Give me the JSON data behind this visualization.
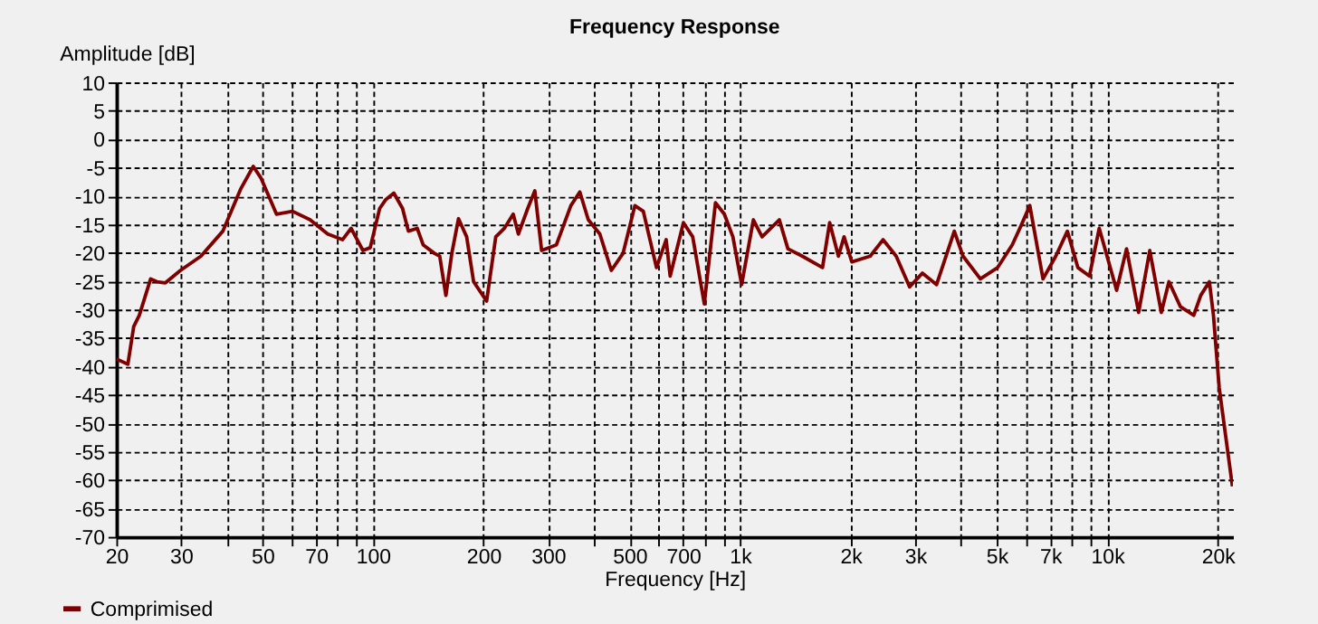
{
  "chart_data": {
    "type": "line",
    "title": "Frequency Response",
    "xlabel": "Frequency [Hz]",
    "ylabel": "Amplitude [dB]",
    "log": "x",
    "grid": true,
    "legend": "bottom left",
    "line_style": "solid",
    "xlim": [
      20,
      22000
    ],
    "ylim": [
      -70,
      10
    ],
    "xticks": [
      20,
      30,
      {
        "value": 40,
        "label": null
      },
      50,
      {
        "value": 60,
        "label": null
      },
      70,
      {
        "value": 80,
        "label": null
      },
      {
        "value": 90,
        "label": null
      },
      100,
      200,
      300,
      {
        "value": 400,
        "label": null
      },
      500,
      {
        "value": 600,
        "label": null
      },
      700,
      {
        "value": 800,
        "label": null
      },
      {
        "value": 900,
        "label": null
      },
      {
        "value": 1000,
        "label": "1k"
      },
      {
        "value": 2000,
        "label": "2k"
      },
      {
        "value": 3000,
        "label": "3k"
      },
      {
        "value": 4000,
        "label": null
      },
      {
        "value": 5000,
        "label": "5k"
      },
      {
        "value": 6000,
        "label": null
      },
      {
        "value": 7000,
        "label": "7k"
      },
      {
        "value": 8000,
        "label": null
      },
      {
        "value": 9000,
        "label": null
      },
      {
        "value": 10000,
        "label": "10k"
      },
      {
        "value": 20000,
        "label": "20k"
      }
    ],
    "yticks": [
      -70,
      -65,
      -60,
      -55,
      -50,
      -45,
      -40,
      -35,
      -30,
      -25,
      -20,
      -15,
      -10,
      -5,
      0,
      5,
      10
    ],
    "x": [
      20,
      21.5,
      22.3,
      23.1,
      24.8,
      25.8,
      27.2,
      29.9,
      34,
      39,
      43.6,
      47.2,
      49.5,
      54.6,
      60.4,
      67.4,
      75.3,
      82.6,
      87.2,
      93.9,
      98.3,
      104.3,
      108.2,
      114,
      120.4,
      124.9,
      132,
      137,
      147,
      152,
      158,
      164,
      171,
      180,
      188,
      204,
      216,
      228,
      241,
      249,
      264,
      276,
      288,
      316,
      346,
      366,
      386,
      415,
      446,
      480,
      517,
      545,
      592,
      629,
      645,
      701,
      743,
      799,
      857,
      906,
      956,
      1010,
      1087,
      1148,
      1279,
      1350,
      1477,
      1677,
      1754,
      1853,
      1920,
      2015,
      2262,
      2451,
      2662,
      2896,
      3137,
      3430,
      3833,
      4049,
      4513,
      5031,
      5513,
      5828,
      6155,
      6686,
      7243,
      7790,
      8318,
      8946,
      9512,
      10610,
      11290,
      12180,
      13060,
      14040,
      14730,
      15830,
      17210,
      17980,
      18980,
      19470,
      20190,
      21930
    ],
    "series": [
      {
        "name": "Comprimised",
        "color": "#800000",
        "values": [
          -38.7,
          -39.6,
          -33,
          -31,
          -24.6,
          -25.1,
          -25.3,
          -23.1,
          -20.6,
          -16.2,
          -8.8,
          -4.8,
          -6.8,
          -13.2,
          -12.7,
          -14.2,
          -16.7,
          -17.7,
          -15.7,
          -19.6,
          -19.1,
          -12.2,
          -10.7,
          -9.5,
          -12.2,
          -16.2,
          -15.7,
          -18.6,
          -20.1,
          -20.6,
          -27.5,
          -20.1,
          -14,
          -17.2,
          -25.1,
          -28.5,
          -17.2,
          -15.7,
          -13.2,
          -16.7,
          -12.2,
          -9.1,
          -19.6,
          -18.6,
          -11.7,
          -9.3,
          -14.2,
          -16.7,
          -23.1,
          -20.1,
          -11.7,
          -12.7,
          -22.6,
          -17.7,
          -24.1,
          -14.7,
          -17.2,
          -29,
          -11.2,
          -13.2,
          -17.2,
          -25.6,
          -14.2,
          -17.2,
          -14.2,
          -19.3,
          -20.6,
          -22.6,
          -14.7,
          -20.6,
          -17.2,
          -21.6,
          -20.6,
          -17.7,
          -20.6,
          -26,
          -23.6,
          -25.6,
          -16.2,
          -20.6,
          -24.6,
          -22.6,
          -18.6,
          -15.2,
          -11.7,
          -24.6,
          -20.6,
          -16.2,
          -22.6,
          -24.1,
          -15.7,
          -26.6,
          -19.3,
          -30.5,
          -19.6,
          -30.5,
          -25.1,
          -29.5,
          -31,
          -27.5,
          -25.1,
          -31,
          -43.8,
          -61.1
        ]
      }
    ]
  }
}
